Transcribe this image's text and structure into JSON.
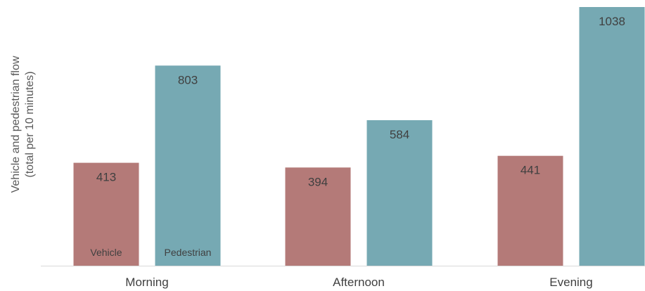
{
  "chart_data": {
    "type": "bar",
    "title": "",
    "xlabel": "",
    "ylabel": "Vehicle and pedestrian flow",
    "ylabel_sub": "(total per 10 minutes)",
    "categories": [
      "Morning",
      "Afternoon",
      "Evening"
    ],
    "ylim": [
      0,
      1038
    ],
    "grid": false,
    "series": [
      {
        "name": "Vehicle",
        "values": [
          413,
          394,
          441
        ],
        "color": "#b47a78"
      },
      {
        "name": "Pedestrian",
        "values": [
          803,
          584,
          1038
        ],
        "color": "#76a9b3"
      }
    ],
    "axis_color": "#d9d9d9"
  }
}
